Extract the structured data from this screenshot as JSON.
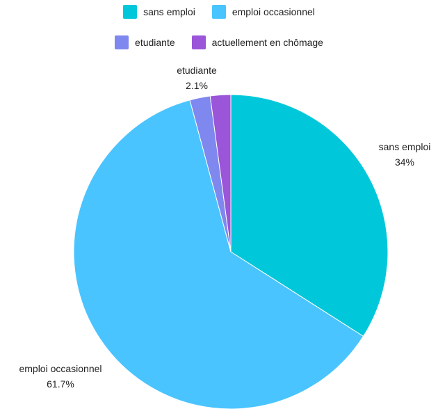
{
  "chart_data": {
    "type": "pie",
    "title": "",
    "categories": [
      "sans emploi",
      "emploi occasionnel",
      "etudiante",
      "actuellement en chômage"
    ],
    "values": [
      34,
      61.7,
      2.1,
      2.1
    ],
    "value_labels": [
      "34%",
      "61.7%",
      "2.1%",
      null
    ],
    "colors": [
      "#00C8DA",
      "#4AC4FF",
      "#7E88EE",
      "#9A55D8"
    ],
    "legend": {
      "position": "top",
      "entries": [
        "sans emploi",
        "emploi occasionnel",
        "etudiante",
        "actuellement en chômage"
      ]
    }
  }
}
